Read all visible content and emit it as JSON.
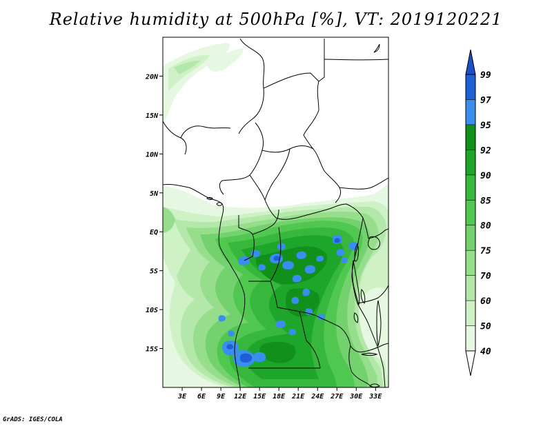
{
  "title": "Relative humidity at 500hPa [%], VT: 2019120221",
  "credit": "GrADS: IGES/COLA",
  "map": {
    "lon_range": [
      0,
      35
    ],
    "lat_range": [
      -20,
      25
    ],
    "lat_ticks": [
      {
        "value": 20,
        "label": "20N"
      },
      {
        "value": 15,
        "label": "15N"
      },
      {
        "value": 10,
        "label": "10N"
      },
      {
        "value": 5,
        "label": "5N"
      },
      {
        "value": 0,
        "label": "EQ"
      },
      {
        "value": -5,
        "label": "5S"
      },
      {
        "value": -10,
        "label": "10S"
      },
      {
        "value": -15,
        "label": "15S"
      }
    ],
    "lon_ticks": [
      {
        "value": 3,
        "label": "3E"
      },
      {
        "value": 6,
        "label": "6E"
      },
      {
        "value": 9,
        "label": "9E"
      },
      {
        "value": 12,
        "label": "12E"
      },
      {
        "value": 15,
        "label": "15E"
      },
      {
        "value": 18,
        "label": "18E"
      },
      {
        "value": 21,
        "label": "21E"
      },
      {
        "value": 24,
        "label": "24E"
      },
      {
        "value": 27,
        "label": "27E"
      },
      {
        "value": 30,
        "label": "30E"
      },
      {
        "value": 33,
        "label": "33E"
      }
    ]
  },
  "colorbar": {
    "levels": [
      "99",
      "97",
      "95",
      "92",
      "90",
      "85",
      "80",
      "75",
      "70",
      "60",
      "50",
      "40"
    ],
    "colors": [
      "#1e5fd6",
      "#3a8ef0",
      "#11901c",
      "#1ea62a",
      "#37b83c",
      "#50c850",
      "#74d26e",
      "#96de8c",
      "#b4e8aa",
      "#cef2c6",
      "#e6f8e2"
    ],
    "top_arrow_color": "#1c50c4",
    "bottom_arrow_color": "#ffffff"
  }
}
